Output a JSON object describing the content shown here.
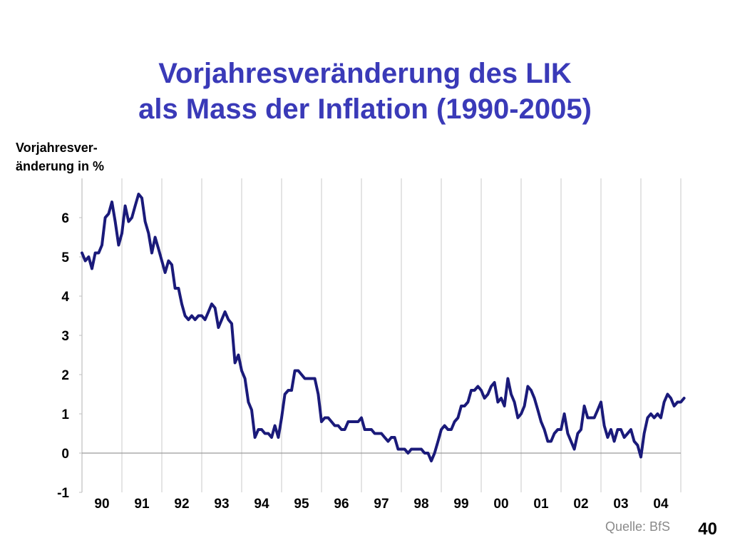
{
  "title": [
    "Vorjahresveränderung des LIK",
    "als Mass der Inflation (1990-2005)"
  ],
  "source": "Quelle: BfS",
  "page_number": "40",
  "chart_data": {
    "type": "line",
    "ylabel": [
      "Vorjahresver-",
      "änderung in %"
    ],
    "xlabel": "",
    "ylim": [
      -1,
      7
    ],
    "xlim": [
      1990,
      2005
    ],
    "yticks": [
      -1,
      0,
      1,
      2,
      3,
      4,
      5,
      6
    ],
    "xtick_labels": [
      "90",
      "91",
      "92",
      "93",
      "94",
      "95",
      "96",
      "97",
      "98",
      "99",
      "00",
      "01",
      "02",
      "03",
      "04"
    ],
    "vertical_gridlines": true,
    "series_color": "#1a1a7a",
    "series": [
      {
        "x": [
          1990.0,
          1990.083,
          1990.167,
          1990.25,
          1990.333,
          1990.417,
          1990.5,
          1990.583,
          1990.667,
          1990.75,
          1990.833,
          1990.917,
          1991.0,
          1991.083,
          1991.167,
          1991.25,
          1991.333,
          1991.417,
          1991.5,
          1991.583,
          1991.667,
          1991.75,
          1991.833,
          1991.917,
          1992.0,
          1992.083,
          1992.167,
          1992.25,
          1992.333,
          1992.417,
          1992.5,
          1992.583,
          1992.667,
          1992.75,
          1992.833,
          1992.917,
          1993.0,
          1993.083,
          1993.167,
          1993.25,
          1993.333,
          1993.417,
          1993.5,
          1993.583,
          1993.667,
          1993.75,
          1993.833,
          1993.917,
          1994.0,
          1994.083,
          1994.167,
          1994.25,
          1994.333,
          1994.417,
          1994.5,
          1994.583,
          1994.667,
          1994.75,
          1994.833,
          1994.917,
          1995.0,
          1995.083,
          1995.167,
          1995.25,
          1995.333,
          1995.417,
          1995.5,
          1995.583,
          1995.667,
          1995.75,
          1995.833,
          1995.917,
          1996.0,
          1996.083,
          1996.167,
          1996.25,
          1996.333,
          1996.417,
          1996.5,
          1996.583,
          1996.667,
          1996.75,
          1996.833,
          1996.917,
          1997.0,
          1997.083,
          1997.167,
          1997.25,
          1997.333,
          1997.417,
          1997.5,
          1997.583,
          1997.667,
          1997.75,
          1997.833,
          1997.917,
          1998.0,
          1998.083,
          1998.167,
          1998.25,
          1998.333,
          1998.417,
          1998.5,
          1998.583,
          1998.667,
          1998.75,
          1998.833,
          1998.917,
          1999.0,
          1999.083,
          1999.167,
          1999.25,
          1999.333,
          1999.417,
          1999.5,
          1999.583,
          1999.667,
          1999.75,
          1999.833,
          1999.917,
          2000.0,
          2000.083,
          2000.167,
          2000.25,
          2000.333,
          2000.417,
          2000.5,
          2000.583,
          2000.667,
          2000.75,
          2000.833,
          2000.917,
          2001.0,
          2001.083,
          2001.167,
          2001.25,
          2001.333,
          2001.417,
          2001.5,
          2001.583,
          2001.667,
          2001.75,
          2001.833,
          2001.917,
          2002.0,
          2002.083,
          2002.167,
          2002.25,
          2002.333,
          2002.417,
          2002.5,
          2002.583,
          2002.667,
          2002.75,
          2002.833,
          2002.917,
          2003.0,
          2003.083,
          2003.167,
          2003.25,
          2003.333,
          2003.417,
          2003.5,
          2003.583,
          2003.667,
          2003.75,
          2003.833,
          2003.917,
          2004.0,
          2004.083,
          2004.167,
          2004.25,
          2004.333,
          2004.417,
          2004.5,
          2004.583,
          2004.667,
          2004.75,
          2004.833,
          2004.917,
          2005.0,
          2005.083
        ],
        "values": [
          5.1,
          4.9,
          5.0,
          4.7,
          5.1,
          5.1,
          5.3,
          6.0,
          6.1,
          6.4,
          5.9,
          5.3,
          5.6,
          6.3,
          5.9,
          6.0,
          6.3,
          6.6,
          6.5,
          5.9,
          5.6,
          5.1,
          5.5,
          5.2,
          4.9,
          4.6,
          4.9,
          4.8,
          4.2,
          4.2,
          3.8,
          3.5,
          3.4,
          3.5,
          3.4,
          3.5,
          3.5,
          3.4,
          3.6,
          3.8,
          3.7,
          3.2,
          3.4,
          3.6,
          3.4,
          3.3,
          2.3,
          2.5,
          2.1,
          1.9,
          1.3,
          1.1,
          0.4,
          0.6,
          0.6,
          0.5,
          0.5,
          0.4,
          0.7,
          0.4,
          0.9,
          1.5,
          1.6,
          1.6,
          2.1,
          2.1,
          2.0,
          1.9,
          1.9,
          1.9,
          1.9,
          1.5,
          0.8,
          0.9,
          0.9,
          0.8,
          0.7,
          0.7,
          0.6,
          0.6,
          0.8,
          0.8,
          0.8,
          0.8,
          0.9,
          0.6,
          0.6,
          0.6,
          0.5,
          0.5,
          0.5,
          0.4,
          0.3,
          0.4,
          0.4,
          0.1,
          0.1,
          0.1,
          0.0,
          0.1,
          0.1,
          0.1,
          0.1,
          0.0,
          0.0,
          -0.2,
          0.0,
          0.3,
          0.6,
          0.7,
          0.6,
          0.6,
          0.8,
          0.9,
          1.2,
          1.2,
          1.3,
          1.6,
          1.6,
          1.7,
          1.6,
          1.4,
          1.5,
          1.7,
          1.8,
          1.3,
          1.4,
          1.2,
          1.9,
          1.5,
          1.3,
          0.9,
          1.0,
          1.2,
          1.7,
          1.6,
          1.4,
          1.1,
          0.8,
          0.6,
          0.3,
          0.3,
          0.5,
          0.6,
          0.6,
          1.0,
          0.5,
          0.3,
          0.1,
          0.5,
          0.6,
          1.2,
          0.9,
          0.9,
          0.9,
          1.1,
          1.3,
          0.7,
          0.4,
          0.6,
          0.3,
          0.6,
          0.6,
          0.4,
          0.5,
          0.6,
          0.3,
          0.2,
          -0.1,
          0.5,
          0.9,
          1.0,
          0.9,
          1.0,
          0.9,
          1.3,
          1.5,
          1.4,
          1.2,
          1.3,
          1.3,
          1.4
        ]
      }
    ]
  }
}
